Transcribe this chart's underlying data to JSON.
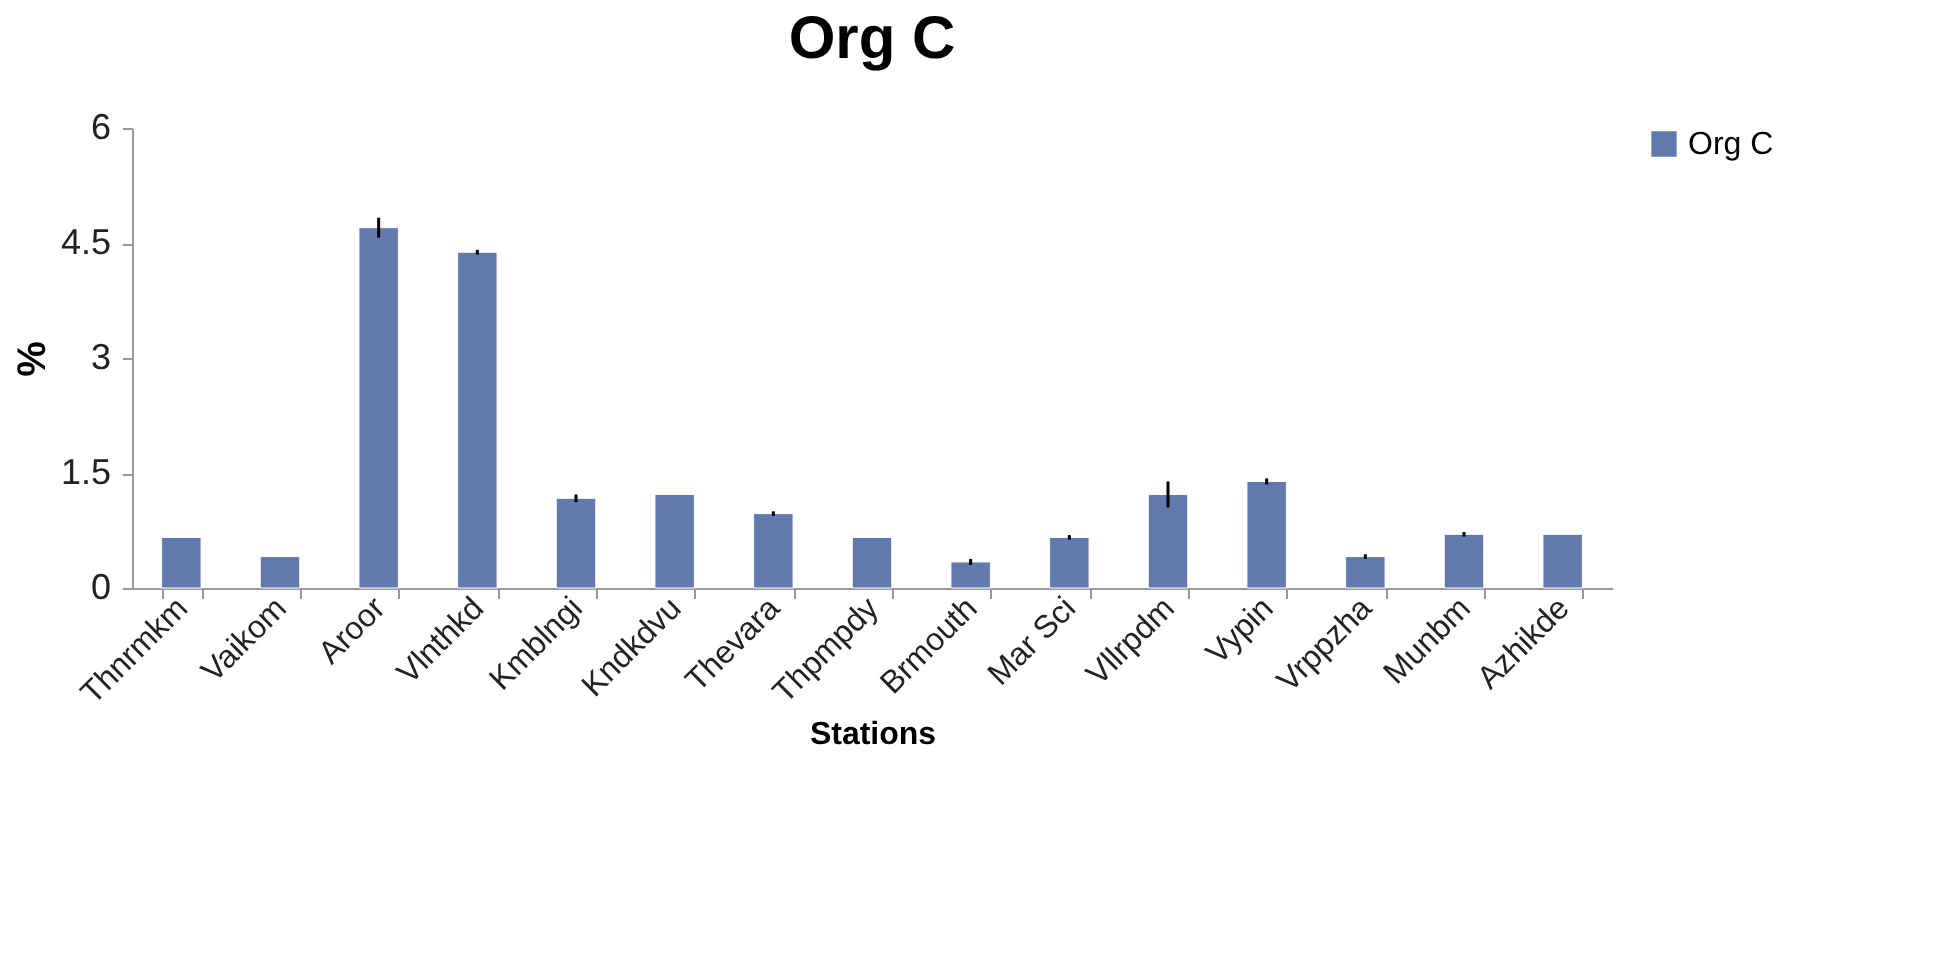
{
  "chart_data": {
    "type": "bar",
    "title": "Org C",
    "xlabel": "Stations",
    "ylabel": "%",
    "categories": [
      "Thnrmkm",
      "Vaikom",
      "Aroor",
      "Vlnthkd",
      "Kmblngi",
      "Kndkdvu",
      "Thevara",
      "Thpmpdy",
      "Brmouth",
      "Mar Sci",
      "Vllrpdm",
      "Vypin",
      "Vrppzha",
      "Munbm",
      "Azhikde"
    ],
    "series": [
      {
        "name": "Org C",
        "color": "#6279ad",
        "values": [
          0.66,
          0.41,
          4.7,
          4.38,
          1.17,
          1.22,
          0.97,
          0.66,
          0.34,
          0.66,
          1.22,
          1.39,
          0.41,
          0.7,
          0.7
        ],
        "errors": [
          null,
          null,
          0.13,
          0.03,
          0.05,
          null,
          0.03,
          null,
          0.04,
          0.03,
          0.17,
          0.04,
          0.03,
          0.03,
          null
        ]
      }
    ],
    "ylim": [
      0,
      6
    ],
    "yticks": [
      0,
      1.5,
      3,
      4.5,
      6
    ],
    "grid": false,
    "legend": "right"
  }
}
